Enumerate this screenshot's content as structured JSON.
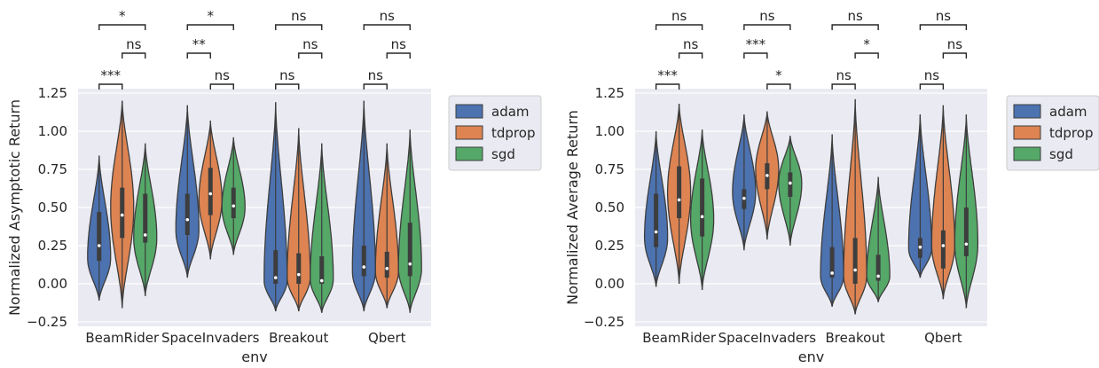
{
  "colors": {
    "adam": "#4C72B0",
    "tdprop": "#DD8452",
    "sgd": "#55A868",
    "panel_bg": "#EAEAF2",
    "grid": "#FFFFFF",
    "outline": "#3d3d3d"
  },
  "legend": {
    "placement": "outside-upper-right",
    "entries": [
      "adam",
      "tdprop",
      "sgd"
    ]
  },
  "chart_data": [
    {
      "type": "violin",
      "xlabel": "env",
      "ylabel": "Normalized Asymptotic Return",
      "ylim": [
        -0.25,
        1.25
      ],
      "yticks": [
        "−0.25",
        "0.00",
        "0.25",
        "0.50",
        "0.75",
        "1.00",
        "1.25"
      ],
      "ytick_values": [
        -0.25,
        0,
        0.25,
        0.5,
        0.75,
        1.0,
        1.25
      ],
      "categories": [
        "BeamRider",
        "SpaceInvaders",
        "Breakout",
        "Qbert"
      ],
      "grid": true,
      "series": [
        {
          "name": "adam",
          "min": [
            -0.11,
            0.04,
            -0.18,
            -0.18
          ],
          "q1": [
            0.15,
            0.32,
            0.0,
            0.05
          ],
          "median": [
            0.25,
            0.42,
            0.04,
            0.11
          ],
          "q3": [
            0.47,
            0.59,
            0.22,
            0.25
          ],
          "max": [
            0.84,
            1.17,
            1.19,
            1.2
          ],
          "peak": [
            0.17,
            0.35,
            0.02,
            0.08
          ]
        },
        {
          "name": "tdprop",
          "min": [
            -0.16,
            0.16,
            -0.18,
            -0.16
          ],
          "q1": [
            0.3,
            0.45,
            0.0,
            0.04
          ],
          "median": [
            0.45,
            0.59,
            0.06,
            0.1
          ],
          "q3": [
            0.63,
            0.76,
            0.2,
            0.21
          ],
          "max": [
            1.2,
            1.07,
            1.02,
            0.92
          ],
          "peak": [
            0.5,
            0.55,
            0.04,
            0.08
          ]
        },
        {
          "name": "sgd",
          "min": [
            -0.08,
            0.19,
            -0.19,
            -0.19
          ],
          "q1": [
            0.27,
            0.43,
            0.0,
            0.05
          ],
          "median": [
            0.32,
            0.51,
            0.02,
            0.13
          ],
          "q3": [
            0.59,
            0.63,
            0.18,
            0.4
          ],
          "max": [
            0.92,
            0.96,
            0.92,
            1.01
          ],
          "peak": [
            0.3,
            0.5,
            0.03,
            0.1
          ]
        }
      ],
      "annotations": [
        {
          "env": 0,
          "pair": [
            "adam",
            "sgd"
          ],
          "label": "*",
          "level": 3
        },
        {
          "env": 0,
          "pair": [
            "tdprop",
            "sgd"
          ],
          "label": "ns",
          "level": 2
        },
        {
          "env": 0,
          "pair": [
            "adam",
            "tdprop"
          ],
          "label": "***",
          "level": 1
        },
        {
          "env": 1,
          "pair": [
            "adam",
            "sgd"
          ],
          "label": "*",
          "level": 3
        },
        {
          "env": 1,
          "pair": [
            "adam",
            "tdprop"
          ],
          "label": "**",
          "level": 2
        },
        {
          "env": 1,
          "pair": [
            "tdprop",
            "sgd"
          ],
          "label": "ns",
          "level": 1
        },
        {
          "env": 2,
          "pair": [
            "adam",
            "sgd"
          ],
          "label": "ns",
          "level": 3
        },
        {
          "env": 2,
          "pair": [
            "tdprop",
            "sgd"
          ],
          "label": "ns",
          "level": 2
        },
        {
          "env": 2,
          "pair": [
            "adam",
            "tdprop"
          ],
          "label": "ns",
          "level": 1
        },
        {
          "env": 3,
          "pair": [
            "adam",
            "sgd"
          ],
          "label": "ns",
          "level": 3
        },
        {
          "env": 3,
          "pair": [
            "tdprop",
            "sgd"
          ],
          "label": "ns",
          "level": 2
        },
        {
          "env": 3,
          "pair": [
            "adam",
            "tdprop"
          ],
          "label": "ns",
          "level": 1
        }
      ]
    },
    {
      "type": "violin",
      "xlabel": "env",
      "ylabel": "Normalized Average Return",
      "ylim": [
        -0.25,
        1.25
      ],
      "yticks": [
        "−0.25",
        "0.00",
        "0.25",
        "0.50",
        "0.75",
        "1.00",
        "1.25"
      ],
      "ytick_values": [
        -0.25,
        0,
        0.25,
        0.5,
        0.75,
        1.0,
        1.25
      ],
      "categories": [
        "BeamRider",
        "SpaceInvaders",
        "Breakout",
        "Qbert"
      ],
      "grid": true,
      "series": [
        {
          "name": "adam",
          "min": [
            -0.02,
            0.22,
            -0.15,
            0.04
          ],
          "q1": [
            0.24,
            0.49,
            0.04,
            0.17
          ],
          "median": [
            0.34,
            0.56,
            0.07,
            0.24
          ],
          "q3": [
            0.59,
            0.62,
            0.24,
            0.3
          ],
          "max": [
            1.0,
            1.11,
            0.98,
            1.11
          ],
          "peak": [
            0.3,
            0.6,
            0.05,
            0.23
          ]
        },
        {
          "name": "tdprop",
          "min": [
            0.0,
            0.29,
            -0.2,
            -0.1
          ],
          "q1": [
            0.43,
            0.62,
            0.0,
            0.1
          ],
          "median": [
            0.55,
            0.71,
            0.09,
            0.25
          ],
          "q3": [
            0.77,
            0.79,
            0.3,
            0.35
          ],
          "max": [
            1.18,
            1.13,
            1.21,
            1.17
          ],
          "peak": [
            0.6,
            0.75,
            0.05,
            0.25
          ]
        },
        {
          "name": "sgd",
          "min": [
            -0.04,
            0.25,
            -0.12,
            -0.16
          ],
          "q1": [
            0.31,
            0.57,
            0.02,
            0.18
          ],
          "median": [
            0.44,
            0.66,
            0.05,
            0.26
          ],
          "q3": [
            0.69,
            0.73,
            0.19,
            0.5
          ],
          "max": [
            1.01,
            0.97,
            0.7,
            1.11
          ],
          "peak": [
            0.42,
            0.66,
            0.05,
            0.26
          ]
        }
      ],
      "annotations": [
        {
          "env": 0,
          "pair": [
            "adam",
            "sgd"
          ],
          "label": "ns",
          "level": 3
        },
        {
          "env": 0,
          "pair": [
            "tdprop",
            "sgd"
          ],
          "label": "ns",
          "level": 2
        },
        {
          "env": 0,
          "pair": [
            "adam",
            "tdprop"
          ],
          "label": "***",
          "level": 1
        },
        {
          "env": 1,
          "pair": [
            "adam",
            "sgd"
          ],
          "label": "ns",
          "level": 3
        },
        {
          "env": 1,
          "pair": [
            "adam",
            "tdprop"
          ],
          "label": "***",
          "level": 2
        },
        {
          "env": 1,
          "pair": [
            "tdprop",
            "sgd"
          ],
          "label": "*",
          "level": 1
        },
        {
          "env": 2,
          "pair": [
            "adam",
            "sgd"
          ],
          "label": "ns",
          "level": 3
        },
        {
          "env": 2,
          "pair": [
            "tdprop",
            "sgd"
          ],
          "label": "*",
          "level": 2
        },
        {
          "env": 2,
          "pair": [
            "adam",
            "tdprop"
          ],
          "label": "ns",
          "level": 1
        },
        {
          "env": 3,
          "pair": [
            "adam",
            "sgd"
          ],
          "label": "ns",
          "level": 3
        },
        {
          "env": 3,
          "pair": [
            "tdprop",
            "sgd"
          ],
          "label": "ns",
          "level": 2
        },
        {
          "env": 3,
          "pair": [
            "adam",
            "tdprop"
          ],
          "label": "ns",
          "level": 1
        }
      ]
    }
  ]
}
